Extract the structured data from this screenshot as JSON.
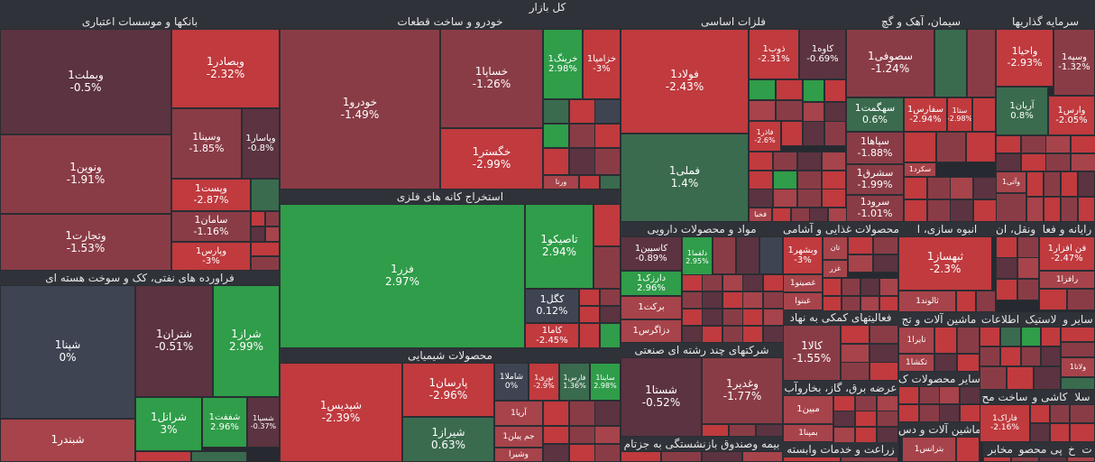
{
  "title": "کل بازار",
  "colors": {
    "neg_strong": "#c03a3e",
    "neg": "#a7434a",
    "neg_mid": "#8a3c46",
    "neg_dark": "#5c3340",
    "neutral": "#3e4452",
    "pos": "#2f9d49",
    "pos_dark": "#3a6b4e",
    "frame": "#2a2d33"
  },
  "chart_data": {
    "type": "treemap",
    "title": "کل بازار",
    "value_unit": "%",
    "sectors": [
      {
        "name": "بانکها و موسسات اعتباری",
        "stocks": [
          {
            "name": "وبملت1",
            "change": "-0.5%"
          },
          {
            "name": "وبصادر1",
            "change": "-2.32%"
          },
          {
            "name": "ونوین1",
            "change": "-1.91%"
          },
          {
            "name": "وسینا1",
            "change": "-1.85%"
          },
          {
            "name": "وپاسار1",
            "change": "-0.8%"
          },
          {
            "name": "وپست1",
            "change": "-2.87%"
          },
          {
            "name": "سامان1",
            "change": "-1.16%"
          },
          {
            "name": "وتجارت1",
            "change": "-1.53%"
          },
          {
            "name": "وپارس1",
            "change": "-3%"
          }
        ]
      },
      {
        "name": "خودرو و ساخت قطعات",
        "stocks": [
          {
            "name": "خودرو1",
            "change": "-1.49%"
          },
          {
            "name": "خساپا1",
            "change": "-1.26%"
          },
          {
            "name": "خرینگ1",
            "change": "2.98%"
          },
          {
            "name": "خزامیا1",
            "change": "-3%"
          },
          {
            "name": "خگستر1",
            "change": "-2.99%"
          },
          {
            "name": "ورنا",
            "change": ""
          }
        ]
      },
      {
        "name": "فلزات اساسی",
        "stocks": [
          {
            "name": "فولاد1",
            "change": "-2.43%"
          },
          {
            "name": "ذوب1",
            "change": "-2.31%"
          },
          {
            "name": "کاوه1",
            "change": "-0.69%"
          },
          {
            "name": "فملی1",
            "change": "1.4%"
          },
          {
            "name": "فاذر1",
            "change": "-2.6%"
          },
          {
            "name": "فخبا",
            "change": ""
          }
        ]
      },
      {
        "name": "سیمان، آهک و گچ",
        "stocks": [
          {
            "name": "سصوفی1",
            "change": "-1.24%"
          },
          {
            "name": "سهگمت1",
            "change": "0.6%"
          },
          {
            "name": "سفارس1",
            "change": "-2.94%"
          },
          {
            "name": "ستا1",
            "change": "-2.98%"
          },
          {
            "name": "سپاها1",
            "change": "-1.88%"
          },
          {
            "name": "سکرد1",
            "change": ""
          },
          {
            "name": "سشرق1",
            "change": "-1.99%"
          },
          {
            "name": "سرود1",
            "change": "-1.01%"
          }
        ]
      },
      {
        "name": "سرمایه گذاریها",
        "stocks": [
          {
            "name": "واحیا1",
            "change": "-2.93%"
          },
          {
            "name": "وسپه1",
            "change": "-1.32%"
          },
          {
            "name": "آریان1",
            "change": "0.8%"
          },
          {
            "name": "وارس1",
            "change": "-2.05%"
          },
          {
            "name": "وآتی1",
            "change": ""
          }
        ]
      },
      {
        "name": "استخراج کانه های فلزی",
        "stocks": [
          {
            "name": "فزر1",
            "change": "2.97%"
          },
          {
            "name": "تاصیکو1",
            "change": "2.94%"
          },
          {
            "name": "کگل1",
            "change": "0.12%"
          },
          {
            "name": "کاما1",
            "change": "-2.45%"
          }
        ]
      },
      {
        "name": "فراورده های نفتی، کک و سوخت هسته ای",
        "stocks": [
          {
            "name": "شپنا1",
            "change": "0%"
          },
          {
            "name": "شتران1",
            "change": "-0.51%"
          },
          {
            "name": "شراز1",
            "change": "2.99%"
          },
          {
            "name": "شرانل1",
            "change": "3%"
          },
          {
            "name": "شففت1",
            "change": "2.96%"
          },
          {
            "name": "شسپا1",
            "change": "-0.37%"
          },
          {
            "name": "شبندر1",
            "change": ""
          }
        ]
      },
      {
        "name": "محصولات شیمیایی",
        "stocks": [
          {
            "name": "شپدیس1",
            "change": "-2.39%"
          },
          {
            "name": "پارسان1",
            "change": "-2.96%"
          },
          {
            "name": "شاملا1",
            "change": "0%"
          },
          {
            "name": "نوری1",
            "change": "-2.9%"
          },
          {
            "name": "فارس1",
            "change": "1.36%"
          },
          {
            "name": "ساینا1",
            "change": "2.98%"
          },
          {
            "name": "شیراز1",
            "change": "0.63%"
          },
          {
            "name": "آریا1",
            "change": ""
          },
          {
            "name": "جم پیلن1",
            "change": ""
          },
          {
            "name": "وشیرا",
            "change": ""
          }
        ]
      },
      {
        "name": "مواد و محصولات دارویی",
        "stocks": [
          {
            "name": "کاسپین1",
            "change": "-0.89%"
          },
          {
            "name": "دلقما1",
            "change": "2.95%"
          },
          {
            "name": "دارزک1",
            "change": "2.96%"
          },
          {
            "name": "برکت1",
            "change": ""
          },
          {
            "name": "دزاگرس1",
            "change": ""
          }
        ]
      },
      {
        "name": "شرکتهای چند رشته ای صنعتی",
        "stocks": [
          {
            "name": "شستا1",
            "change": "-0.52%"
          },
          {
            "name": "وغدیر1",
            "change": "-1.77%"
          }
        ]
      },
      {
        "name": "محصولات غذایی و آشامی",
        "stocks": [
          {
            "name": "وبشهر1",
            "change": "-3%"
          },
          {
            "name": "غصینو1",
            "change": ""
          },
          {
            "name": "غبنوا",
            "change": ""
          },
          {
            "name": "غزر",
            "change": ""
          },
          {
            "name": "تان",
            "change": ""
          }
        ]
      },
      {
        "name": "فعالیتهای کمکی به نهاد",
        "stocks": [
          {
            "name": "کالا1",
            "change": "-1.55%"
          }
        ]
      },
      {
        "name": "عرضه برق، گاز، بخاروآب",
        "stocks": [
          {
            "name": "مبین1",
            "change": ""
          },
          {
            "name": "بمپنا1",
            "change": ""
          }
        ]
      },
      {
        "name": "انبوه سازی، ا",
        "stocks": [
          {
            "name": "ثبهساز1",
            "change": "-2.3%"
          },
          {
            "name": "ثالوند1",
            "change": ""
          }
        ]
      },
      {
        "name": "حمل ونقل، ان",
        "stocks": []
      },
      {
        "name": "رایانه و فعا",
        "stocks": [
          {
            "name": "فن افزار1",
            "change": "-2.47%"
          },
          {
            "name": "رافزا1",
            "change": ""
          }
        ]
      },
      {
        "name": "ماشین آلات و تج",
        "stocks": [
          {
            "name": "تایرا1",
            "change": ""
          },
          {
            "name": "تکشا1",
            "change": ""
          }
        ]
      },
      {
        "name": "اطلاعات",
        "stocks": []
      },
      {
        "name": "لاستیک",
        "stocks": []
      },
      {
        "name": "سایر و",
        "stocks": [
          {
            "name": "ولانا1",
            "change": ""
          }
        ]
      },
      {
        "name": "سایر محصولات ک",
        "stocks": []
      },
      {
        "name": "ساخت مح",
        "stocks": []
      },
      {
        "name": "کاشی و",
        "stocks": [
          {
            "name": "فاراک1",
            "change": "-2.16%"
          }
        ]
      },
      {
        "name": "سلا",
        "stocks": []
      },
      {
        "name": "ماشین آلات و دس",
        "stocks": []
      },
      {
        "name": "بیمه وصندوق بازنشستگی به جزتام",
        "stocks": []
      },
      {
        "name": "زراعت و خدمات وابسته",
        "stocks": [
          {
            "name": "بترانس1",
            "change": ""
          }
        ]
      },
      {
        "name": "محصو",
        "stocks": []
      },
      {
        "name": "مخابر",
        "stocks": []
      },
      {
        "name": "پی",
        "stocks": []
      },
      {
        "name": "خ",
        "stocks": []
      },
      {
        "name": "ت",
        "stocks": []
      }
    ]
  }
}
